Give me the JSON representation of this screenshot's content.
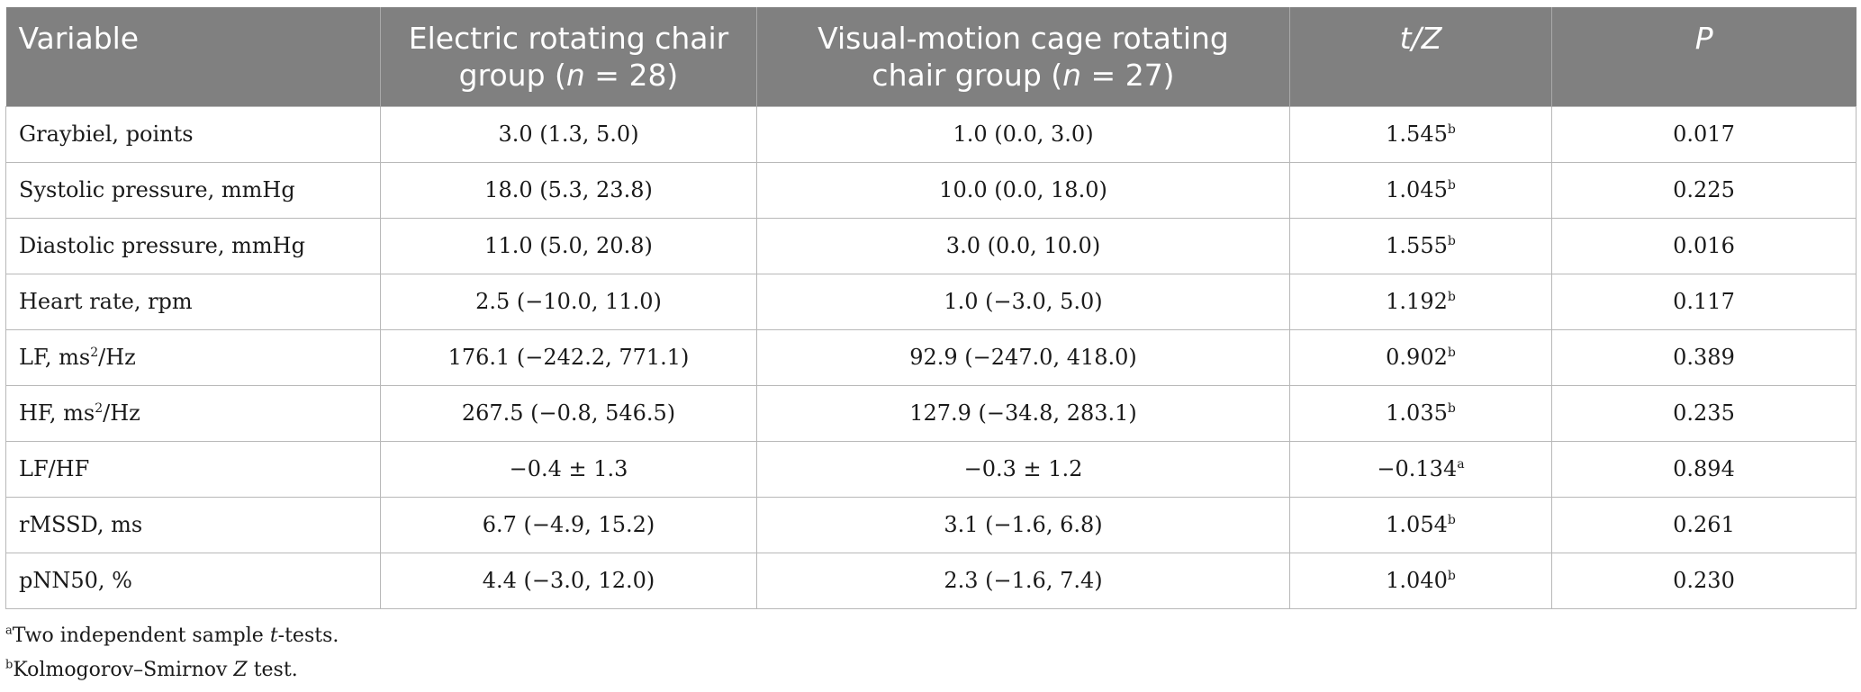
{
  "table": {
    "headers": {
      "variable": "Variable",
      "group1_pre": "Electric rotating chair",
      "group1_post_a": "group (",
      "group1_n": "n",
      "group1_post_b": " =  28)",
      "group2_pre": "Visual-motion cage rotating",
      "group2_post_a": "chair group (",
      "group2_n": "n",
      "group2_post_b": " =  27)",
      "stat": "t/Z",
      "p": "P"
    },
    "rows": [
      {
        "variable": "Graybiel, points",
        "sup_var": "",
        "var_tail": "",
        "g1": "3.0 (1.3, 5.0)",
        "g2": "1.0 (0.0, 3.0)",
        "stat": "1.545",
        "stat_sup": "b",
        "p": "0.017"
      },
      {
        "variable": "Systolic pressure, mmHg",
        "sup_var": "",
        "var_tail": "",
        "g1": "18.0 (5.3, 23.8)",
        "g2": "10.0 (0.0, 18.0)",
        "stat": "1.045",
        "stat_sup": "b",
        "p": "0.225"
      },
      {
        "variable": "Diastolic pressure, mmHg",
        "sup_var": "",
        "var_tail": "",
        "g1": "11.0 (5.0, 20.8)",
        "g2": "3.0 (0.0, 10.0)",
        "stat": "1.555",
        "stat_sup": "b",
        "p": "0.016"
      },
      {
        "variable": "Heart rate, rpm",
        "sup_var": "",
        "var_tail": "",
        "g1": "2.5 (−10.0, 11.0)",
        "g2": "1.0 (−3.0, 5.0)",
        "stat": "1.192",
        "stat_sup": "b",
        "p": "0.117"
      },
      {
        "variable": "LF, ms",
        "sup_var": "2",
        "var_tail": "/Hz",
        "g1": "176.1 (−242.2, 771.1)",
        "g2": "92.9 (−247.0, 418.0)",
        "stat": "0.902",
        "stat_sup": "b",
        "p": "0.389"
      },
      {
        "variable": "HF, ms",
        "sup_var": "2",
        "var_tail": "/Hz",
        "g1": "267.5 (−0.8, 546.5)",
        "g2": "127.9 (−34.8, 283.1)",
        "stat": "1.035",
        "stat_sup": "b",
        "p": "0.235"
      },
      {
        "variable": "LF/HF",
        "sup_var": "",
        "var_tail": "",
        "g1": "−0.4 ± 1.3",
        "g2": "−0.3 ± 1.2",
        "stat": "−0.134",
        "stat_sup": "a",
        "p": "0.894"
      },
      {
        "variable": "rMSSD, ms",
        "sup_var": "",
        "var_tail": "",
        "g1": "6.7 (−4.9, 15.2)",
        "g2": "3.1 (−1.6, 6.8)",
        "stat": "1.054",
        "stat_sup": "b",
        "p": "0.261"
      },
      {
        "variable": "pNN50, %",
        "sup_var": "",
        "var_tail": "",
        "g1": "4.4 (−3.0, 12.0)",
        "g2": "2.3 (−1.6, 7.4)",
        "stat": "1.040",
        "stat_sup": "b",
        "p": "0.230"
      }
    ]
  },
  "footnotes": [
    {
      "mark": "a",
      "text_pre": "Two independent sample ",
      "text_it": "t",
      "text_post": "-tests."
    },
    {
      "mark": "b",
      "text_pre": "Kolmogorov–Smirnov ",
      "text_it": "Z",
      "text_post": " test."
    }
  ]
}
